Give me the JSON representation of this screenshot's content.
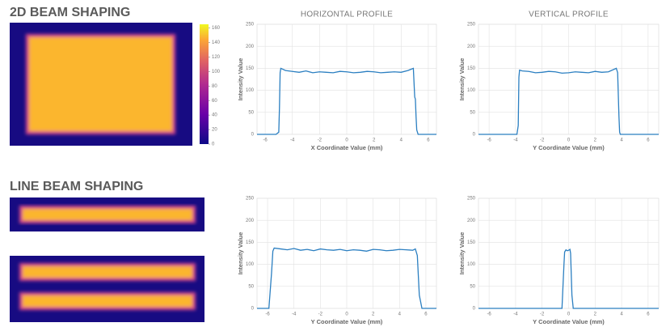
{
  "sections": [
    {
      "title": "2D BEAM SHAPING"
    },
    {
      "title": "LINE BEAM SHAPING"
    }
  ],
  "colorbar": {
    "lim": [
      0,
      165
    ],
    "ticks": [
      0,
      20,
      40,
      60,
      80,
      100,
      120,
      140,
      160
    ]
  },
  "chart_data": [
    {
      "type": "line",
      "title": "HORIZONTAL PROFILE",
      "x_label": "X Coordinate Value (mm)",
      "y_label": "Intensity Value",
      "xlim": [
        -6.6,
        6.6
      ],
      "ylim": [
        0,
        250
      ],
      "xticks": [
        -6,
        -4,
        -2,
        0,
        2,
        4,
        6
      ],
      "yticks": [
        0,
        50,
        100,
        150,
        200,
        250
      ],
      "grid": true,
      "series": [
        {
          "color": "#2b7fc1",
          "x": [
            -6.6,
            -5.2,
            -5.0,
            -4.95,
            -4.9,
            -4.85,
            -4.5,
            -4,
            -3.5,
            -3,
            -2.5,
            -2,
            -1.5,
            -1,
            -0.5,
            0,
            0.5,
            1,
            1.5,
            2,
            2.5,
            3,
            3.5,
            4,
            4.5,
            4.9,
            5.0,
            5.05,
            5.1,
            5.15,
            5.25,
            5.4,
            6.6
          ],
          "values": [
            0,
            0,
            5,
            60,
            140,
            150,
            145,
            143,
            141,
            144,
            140,
            142,
            141,
            140,
            143,
            142,
            140,
            141,
            143,
            142,
            140,
            141,
            142,
            141,
            145,
            150,
            85,
            80,
            40,
            10,
            0,
            0,
            0
          ]
        }
      ]
    },
    {
      "type": "line",
      "title": "VERTICAL PROFILE",
      "x_label": "Y Coordinate Value (mm)",
      "y_label": "Intensity Value",
      "xlim": [
        -6.8,
        6.8
      ],
      "ylim": [
        0,
        250
      ],
      "xticks": [
        -6,
        -4,
        -2,
        0,
        2,
        4,
        6
      ],
      "yticks": [
        0,
        50,
        100,
        150,
        200,
        250
      ],
      "grid": true,
      "series": [
        {
          "color": "#2b7fc1",
          "x": [
            -6.8,
            -3.9,
            -3.8,
            -3.75,
            -3.7,
            -3.5,
            -3,
            -2.5,
            -2,
            -1.5,
            -1,
            -0.5,
            0,
            0.5,
            1,
            1.5,
            2,
            2.5,
            3,
            3.6,
            3.7,
            3.8,
            3.85,
            3.9,
            6.8
          ],
          "values": [
            0,
            0,
            20,
            130,
            146,
            144,
            143,
            140,
            141,
            143,
            142,
            139,
            140,
            142,
            141,
            140,
            143,
            141,
            142,
            150,
            140,
            40,
            5,
            0,
            0
          ]
        }
      ]
    },
    {
      "type": "line",
      "x_label": "Y Coordinate Value (mm)",
      "y_label": "Intensity Value",
      "xlim": [
        -6.8,
        6.8
      ],
      "ylim": [
        0,
        250
      ],
      "xticks": [
        -6,
        -4,
        -2,
        0,
        2,
        4,
        6
      ],
      "yticks": [
        0,
        50,
        100,
        150,
        200,
        250
      ],
      "grid": true,
      "series": [
        {
          "color": "#2b7fc1",
          "x": [
            -6.8,
            -5.9,
            -5.7,
            -5.6,
            -5.5,
            -5,
            -4.5,
            -4,
            -3.5,
            -3,
            -2.5,
            -2,
            -1.5,
            -1,
            -0.5,
            0,
            0.5,
            1,
            1.5,
            2,
            2.5,
            3,
            3.5,
            4,
            4.5,
            5,
            5.2,
            5.35,
            5.5,
            5.7,
            6.8
          ],
          "values": [
            0,
            0,
            80,
            130,
            137,
            135,
            133,
            136,
            132,
            134,
            131,
            135,
            133,
            132,
            134,
            131,
            133,
            132,
            130,
            134,
            133,
            131,
            132,
            134,
            133,
            132,
            135,
            120,
            30,
            0,
            0
          ]
        }
      ]
    },
    {
      "type": "line",
      "x_label": "Y Coordinate Value (mm)",
      "y_label": "Intensity Value",
      "xlim": [
        -6.8,
        6.8
      ],
      "ylim": [
        0,
        250
      ],
      "xticks": [
        -6,
        -4,
        -2,
        0,
        2,
        4,
        6
      ],
      "yticks": [
        0,
        50,
        100,
        150,
        200,
        250
      ],
      "grid": true,
      "series": [
        {
          "color": "#2b7fc1",
          "x": [
            -6.8,
            -0.5,
            -0.35,
            -0.3,
            -0.2,
            -0.1,
            0,
            0.1,
            0.15,
            0.25,
            0.35,
            6.8
          ],
          "values": [
            0,
            0,
            100,
            128,
            133,
            131,
            132,
            134,
            125,
            30,
            0,
            0
          ]
        }
      ]
    }
  ]
}
